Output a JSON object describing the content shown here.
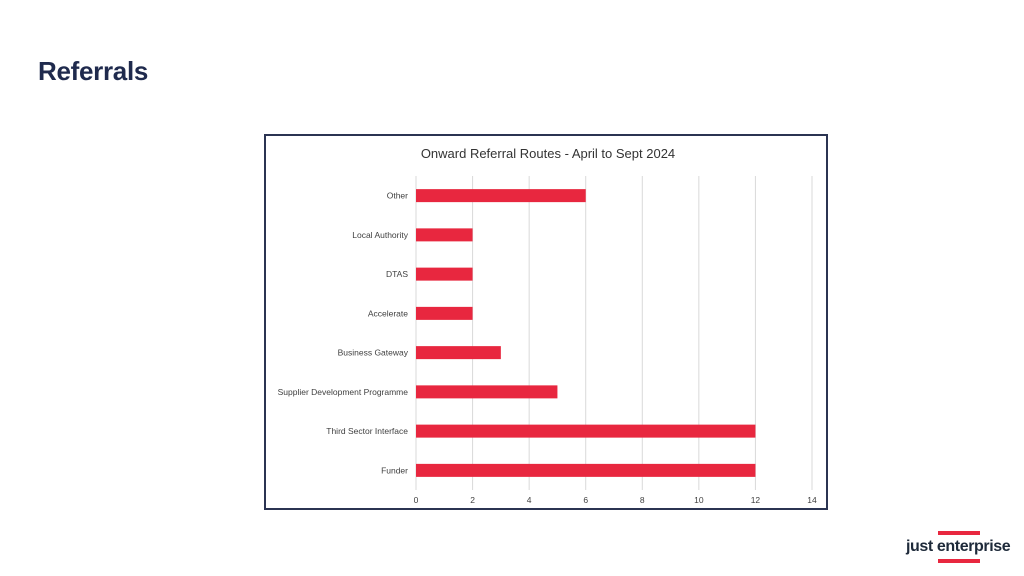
{
  "slide": {
    "title": "Referrals"
  },
  "logo": {
    "text": "just enterprise",
    "accent_color": "#e8273f"
  },
  "colors": {
    "bar": "#e8273f",
    "grid": "#d9d9d9",
    "frame": "#2b3452",
    "title": "#1f2a4d"
  },
  "chart_data": {
    "type": "bar",
    "orientation": "horizontal",
    "title": "Onward Referral Routes - April to Sept 2024",
    "categories": [
      "Other",
      "Local Authority",
      "DTAS",
      "Accelerate",
      "Business Gateway",
      "Supplier Development Programme",
      "Third Sector Interface",
      "Funder"
    ],
    "values": [
      6,
      2,
      2,
      2,
      3,
      5,
      12,
      12
    ],
    "xlim": [
      0,
      14
    ],
    "xticks": [
      "0",
      "2",
      "4",
      "6",
      "8",
      "10",
      "12",
      "14"
    ],
    "xlabel": "",
    "ylabel": "",
    "grid": true,
    "legend": "none"
  }
}
